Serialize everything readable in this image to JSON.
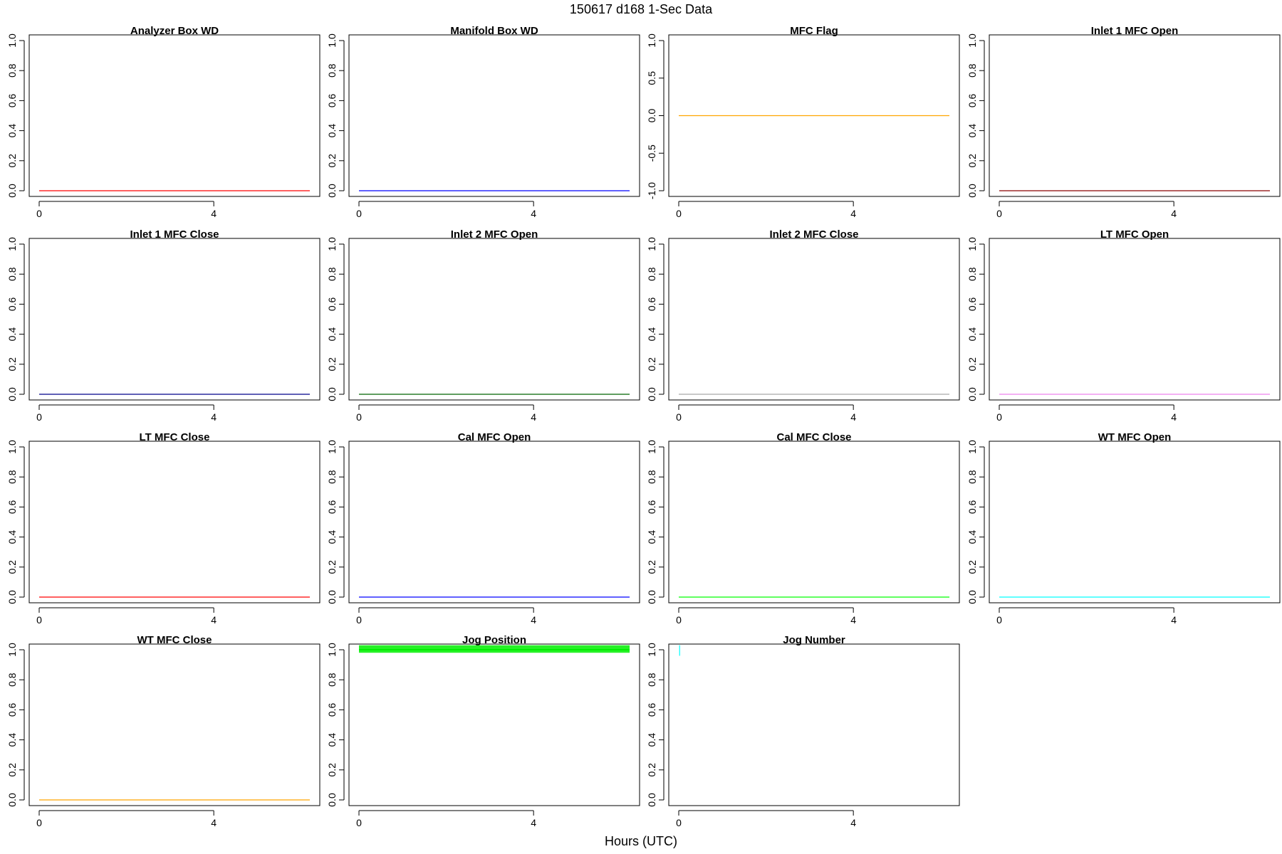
{
  "figure": {
    "title": "150617   d168   1-Sec Data",
    "xlabel": "Hours (UTC)"
  },
  "chart_data": [
    {
      "type": "line",
      "title": "Analyzer Box WD",
      "xlim": [
        0,
        6.2
      ],
      "xticks": [
        0,
        4
      ],
      "ylim": [
        0,
        1
      ],
      "yticks": [
        "0.0",
        "0.2",
        "0.4",
        "0.6",
        "0.8",
        "1.0"
      ],
      "color": "#ff0000",
      "series": [
        {
          "x": [
            0,
            6.2
          ],
          "y": [
            0,
            0
          ]
        }
      ]
    },
    {
      "type": "line",
      "title": "Manifold Box WD",
      "xlim": [
        0,
        6.2
      ],
      "xticks": [
        0,
        4
      ],
      "ylim": [
        0,
        1
      ],
      "yticks": [
        "0.0",
        "0.2",
        "0.4",
        "0.6",
        "0.8",
        "1.0"
      ],
      "color": "#0000ff",
      "series": [
        {
          "x": [
            0,
            6.2
          ],
          "y": [
            0,
            0
          ]
        }
      ]
    },
    {
      "type": "line",
      "title": "MFC Flag",
      "xlim": [
        0,
        6.2
      ],
      "xticks": [
        0,
        4
      ],
      "ylim": [
        -1,
        1
      ],
      "yticks": [
        "-1.0",
        "-0.5",
        "0.0",
        "0.5",
        "1.0"
      ],
      "color": "#ffa500",
      "series": [
        {
          "x": [
            0,
            6.2
          ],
          "y": [
            0,
            0
          ]
        }
      ]
    },
    {
      "type": "line",
      "title": "Inlet 1 MFC Open",
      "xlim": [
        0,
        6.2
      ],
      "xticks": [
        0,
        4
      ],
      "ylim": [
        0,
        1
      ],
      "yticks": [
        "0.0",
        "0.2",
        "0.4",
        "0.6",
        "0.8",
        "1.0"
      ],
      "color": "#8b0000",
      "series": [
        {
          "x": [
            0,
            6.2
          ],
          "y": [
            0,
            0
          ]
        }
      ]
    },
    {
      "type": "line",
      "title": "Inlet 1 MFC Close",
      "xlim": [
        0,
        6.2
      ],
      "xticks": [
        0,
        4
      ],
      "ylim": [
        0,
        1
      ],
      "yticks": [
        "0.0",
        "0.2",
        "0.4",
        "0.6",
        "0.8",
        "1.0"
      ],
      "color": "#00008b",
      "series": [
        {
          "x": [
            0,
            6.2
          ],
          "y": [
            0,
            0
          ]
        }
      ]
    },
    {
      "type": "line",
      "title": "Inlet 2 MFC Open",
      "xlim": [
        0,
        6.2
      ],
      "xticks": [
        0,
        4
      ],
      "ylim": [
        0,
        1
      ],
      "yticks": [
        "0.0",
        "0.2",
        "0.4",
        "0.6",
        "0.8",
        "1.0"
      ],
      "color": "#006400",
      "series": [
        {
          "x": [
            0,
            6.2
          ],
          "y": [
            0,
            0
          ]
        }
      ]
    },
    {
      "type": "line",
      "title": "Inlet 2 MFC Close",
      "xlim": [
        0,
        6.2
      ],
      "xticks": [
        0,
        4
      ],
      "ylim": [
        0,
        1
      ],
      "yticks": [
        "0.0",
        "0.2",
        "0.4",
        "0.6",
        "0.8",
        "1.0"
      ],
      "color": "#a9a9a9",
      "series": [
        {
          "x": [
            0,
            6.2
          ],
          "y": [
            0,
            0
          ]
        }
      ]
    },
    {
      "type": "line",
      "title": "LT MFC Open",
      "xlim": [
        0,
        6.2
      ],
      "xticks": [
        0,
        4
      ],
      "ylim": [
        0,
        1
      ],
      "yticks": [
        "0.0",
        "0.2",
        "0.4",
        "0.6",
        "0.8",
        "1.0"
      ],
      "color": "#ee82ee",
      "series": [
        {
          "x": [
            0,
            6.2
          ],
          "y": [
            0,
            0
          ]
        }
      ]
    },
    {
      "type": "line",
      "title": "LT MFC Close",
      "xlim": [
        0,
        6.2
      ],
      "xticks": [
        0,
        4
      ],
      "ylim": [
        0,
        1
      ],
      "yticks": [
        "0.0",
        "0.2",
        "0.4",
        "0.6",
        "0.8",
        "1.0"
      ],
      "color": "#ff0000",
      "series": [
        {
          "x": [
            0,
            6.2
          ],
          "y": [
            0,
            0
          ]
        }
      ]
    },
    {
      "type": "line",
      "title": "Cal MFC Open",
      "xlim": [
        0,
        6.2
      ],
      "xticks": [
        0,
        4
      ],
      "ylim": [
        0,
        1
      ],
      "yticks": [
        "0.0",
        "0.2",
        "0.4",
        "0.6",
        "0.8",
        "1.0"
      ],
      "color": "#0000ff",
      "series": [
        {
          "x": [
            0,
            6.2
          ],
          "y": [
            0,
            0
          ]
        }
      ]
    },
    {
      "type": "line",
      "title": "Cal MFC Close",
      "xlim": [
        0,
        6.2
      ],
      "xticks": [
        0,
        4
      ],
      "ylim": [
        0,
        1
      ],
      "yticks": [
        "0.0",
        "0.2",
        "0.4",
        "0.6",
        "0.8",
        "1.0"
      ],
      "color": "#00ff00",
      "series": [
        {
          "x": [
            0,
            6.2
          ],
          "y": [
            0,
            0
          ]
        }
      ]
    },
    {
      "type": "line",
      "title": "WT MFC Open",
      "xlim": [
        0,
        6.2
      ],
      "xticks": [
        0,
        4
      ],
      "ylim": [
        0,
        1
      ],
      "yticks": [
        "0.0",
        "0.2",
        "0.4",
        "0.6",
        "0.8",
        "1.0"
      ],
      "color": "#00ffff",
      "series": [
        {
          "x": [
            0,
            6.2
          ],
          "y": [
            0,
            0
          ]
        }
      ]
    },
    {
      "type": "line",
      "title": "WT MFC Close",
      "xlim": [
        0,
        6.2
      ],
      "xticks": [
        0,
        4
      ],
      "ylim": [
        0,
        1
      ],
      "yticks": [
        "0.0",
        "0.2",
        "0.4",
        "0.6",
        "0.8",
        "1.0"
      ],
      "color": "#ffa500",
      "series": [
        {
          "x": [
            0,
            6.2
          ],
          "y": [
            0,
            0
          ]
        }
      ]
    },
    {
      "type": "line",
      "title": "Jog Position",
      "xlim": [
        0,
        6.2
      ],
      "xticks": [
        0,
        4
      ],
      "ylim": [
        0,
        1
      ],
      "yticks": [
        "0.0",
        "0.2",
        "0.4",
        "0.6",
        "0.8",
        "1.0"
      ],
      "color": "#00ee00",
      "series": [
        {
          "x": [
            0,
            6.2
          ],
          "y": [
            1.0,
            1.0
          ],
          "band": [
            0.98,
            1.03
          ]
        }
      ]
    },
    {
      "type": "line",
      "title": "Jog Number",
      "xlim": [
        0,
        6.2
      ],
      "xticks": [
        0,
        4
      ],
      "ylim": [
        0,
        1
      ],
      "yticks": [
        "0.0",
        "0.2",
        "0.4",
        "0.6",
        "0.8",
        "1.0"
      ],
      "color": "#00ffff",
      "series": [
        {
          "x": [
            0.02,
            0.02
          ],
          "y": [
            0.96,
            1.03
          ]
        }
      ]
    }
  ]
}
